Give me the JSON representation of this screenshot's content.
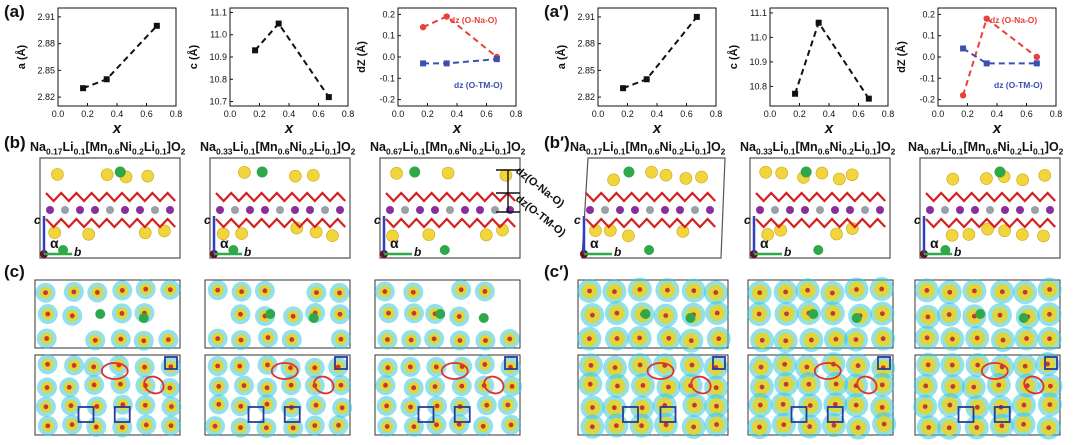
{
  "panel_labels": {
    "a": "(a)",
    "a_prime": "(a′)",
    "b": "(b)",
    "b_prime": "(b′)",
    "c": "(c)",
    "c_prime": "(c′)"
  },
  "formulas": [
    {
      "parts": [
        [
          "Na",
          ""
        ],
        [
          "0.17",
          "s"
        ],
        [
          "Li",
          ""
        ],
        [
          "0.1",
          "s"
        ],
        [
          "[Mn",
          ""
        ],
        [
          "0.6",
          "s"
        ],
        [
          "Ni",
          ""
        ],
        [
          "0.2",
          "s"
        ],
        [
          "Li",
          ""
        ],
        [
          "0.1",
          "s"
        ],
        [
          "]O",
          ""
        ],
        [
          "2",
          "s"
        ]
      ]
    },
    {
      "parts": [
        [
          "Na",
          ""
        ],
        [
          "0.33",
          "s"
        ],
        [
          "Li",
          ""
        ],
        [
          "0.1",
          "s"
        ],
        [
          "[Mn",
          ""
        ],
        [
          "0.6",
          "s"
        ],
        [
          "Ni",
          ""
        ],
        [
          "0.2",
          "s"
        ],
        [
          "Li",
          ""
        ],
        [
          "0.1",
          "s"
        ],
        [
          "]O",
          ""
        ],
        [
          "2",
          "s"
        ]
      ]
    },
    {
      "parts": [
        [
          "Na",
          ""
        ],
        [
          "0.67",
          "s"
        ],
        [
          "Li",
          ""
        ],
        [
          "0.1",
          "s"
        ],
        [
          "[Mn",
          ""
        ],
        [
          "0.6",
          "s"
        ],
        [
          "Ni",
          ""
        ],
        [
          "0.2",
          "s"
        ],
        [
          "Li",
          ""
        ],
        [
          "0.1",
          "s"
        ],
        [
          "]O",
          ""
        ],
        [
          "2",
          "s"
        ]
      ]
    }
  ],
  "structure_axes": {
    "c": "c",
    "alpha": "α",
    "b": "b"
  },
  "dz_annotations": {
    "top": "dz(O-Na-O)",
    "bottom": "dz(O-TM-O)"
  },
  "colors": {
    "black": "#111111",
    "red": "#e8403a",
    "blue": "#3d4fb0",
    "na": "#f2d43c",
    "li": "#2fa84a",
    "mn": "#8a2e9c",
    "ni": "#9aa0a6",
    "o": "#d42020",
    "cyan": "#38c7d9"
  },
  "chart_data": [
    {
      "id": "a",
      "type": "line",
      "x": [
        0.17,
        0.33,
        0.67
      ],
      "y": [
        2.83,
        2.84,
        2.9
      ],
      "xlabel": "x",
      "ylabel": "a (Å)",
      "xlim": [
        0.0,
        0.8
      ],
      "ylim": [
        2.81,
        2.92
      ],
      "xticks": [
        "0.0",
        "0.2",
        "0.4",
        "0.6",
        "0.8"
      ],
      "yticks": [
        "2.82",
        "2.85",
        "2.88",
        "2.91"
      ]
    },
    {
      "id": "c",
      "type": "line",
      "x": [
        0.17,
        0.33,
        0.67
      ],
      "y": [
        10.93,
        11.05,
        10.72
      ],
      "xlabel": "x",
      "ylabel": "c (Å)",
      "xlim": [
        0.0,
        0.8
      ],
      "ylim": [
        10.68,
        11.12
      ],
      "xticks": [
        "0.0",
        "0.2",
        "0.4",
        "0.6",
        "0.8"
      ],
      "yticks": [
        "10.7",
        "10.8",
        "10.9",
        "11.0",
        "11.1"
      ]
    },
    {
      "id": "dz",
      "type": "line",
      "xlabel": "x",
      "ylabel": "dZ (Å)",
      "xlim": [
        0.0,
        0.8
      ],
      "ylim": [
        -0.23,
        0.23
      ],
      "xticks": [
        "0.0",
        "0.2",
        "0.4",
        "0.6",
        "0.8"
      ],
      "yticks": [
        "-0.2",
        "-0.1",
        "0.0",
        "0.1",
        "0.2"
      ],
      "series": [
        {
          "name": "dz (O-Na-O)",
          "x": [
            0.17,
            0.33,
            0.67
          ],
          "y": [
            0.14,
            0.19,
            0.0
          ],
          "color": "#e8403a",
          "marker": "circle"
        },
        {
          "name": "dz (O-TM-O)",
          "x": [
            0.17,
            0.33,
            0.67
          ],
          "y": [
            -0.03,
            -0.03,
            -0.01
          ],
          "color": "#3d4fb0",
          "marker": "square"
        }
      ]
    },
    {
      "id": "a_prime",
      "type": "line",
      "x": [
        0.17,
        0.33,
        0.67
      ],
      "y": [
        2.83,
        2.84,
        2.91
      ],
      "xlabel": "x",
      "ylabel": "a (Å)",
      "xlim": [
        0.0,
        0.8
      ],
      "ylim": [
        2.81,
        2.92
      ],
      "xticks": [
        "0.0",
        "0.2",
        "0.4",
        "0.6",
        "0.8"
      ],
      "yticks": [
        "2.82",
        "2.85",
        "2.88",
        "2.91"
      ]
    },
    {
      "id": "c_prime",
      "type": "line",
      "x": [
        0.17,
        0.33,
        0.67
      ],
      "y": [
        10.77,
        11.06,
        10.75
      ],
      "xlabel": "x",
      "ylabel": "c (Å)",
      "xlim": [
        0.0,
        0.8
      ],
      "ylim": [
        10.72,
        11.12
      ],
      "xticks": [
        "0.0",
        "0.2",
        "0.4",
        "0.6",
        "0.8"
      ],
      "yticks": [
        "10.8",
        "10.9",
        "11.0",
        "11.1"
      ]
    },
    {
      "id": "dz_prime",
      "type": "line",
      "xlabel": "x",
      "ylabel": "dZ (Å)",
      "xlim": [
        0.0,
        0.8
      ],
      "ylim": [
        -0.23,
        0.23
      ],
      "xticks": [
        "0.0",
        "0.2",
        "0.4",
        "0.6",
        "0.8"
      ],
      "yticks": [
        "-0.2",
        "-0.1",
        "0.0",
        "0.1",
        "0.2"
      ],
      "series": [
        {
          "name": "dz (O-Na-O)",
          "x": [
            0.17,
            0.33,
            0.67
          ],
          "y": [
            -0.18,
            0.18,
            0.0
          ],
          "color": "#e8403a",
          "marker": "circle"
        },
        {
          "name": "dz (O-TM-O)",
          "x": [
            0.17,
            0.33,
            0.67
          ],
          "y": [
            0.04,
            -0.03,
            -0.03
          ],
          "color": "#3d4fb0",
          "marker": "square"
        }
      ]
    }
  ]
}
